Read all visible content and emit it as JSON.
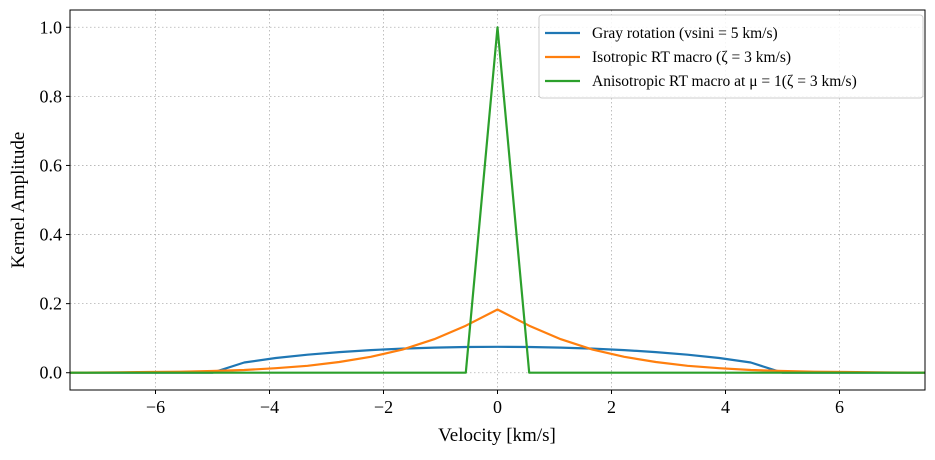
{
  "chart_data": {
    "type": "line",
    "xlabel": "Velocity [km/s]",
    "ylabel": "Kernel Amplitude",
    "xlim": [
      -7.5,
      7.5
    ],
    "ylim": [
      -0.05,
      1.05
    ],
    "xticks": [
      -6,
      -4,
      -2,
      0,
      2,
      4,
      6
    ],
    "xtick_labels": [
      "−6",
      "−4",
      "−2",
      "0",
      "2",
      "4",
      "6"
    ],
    "yticks": [
      0.0,
      0.2,
      0.4,
      0.6,
      0.8,
      1.0
    ],
    "ytick_labels": [
      "0.0",
      "0.2",
      "0.4",
      "0.6",
      "0.8",
      "1.0"
    ],
    "grid": true,
    "legend_position": "top-right",
    "x": [
      -7.778,
      -7.222,
      -6.667,
      -6.111,
      -5.556,
      -5.0,
      -4.444,
      -3.889,
      -3.333,
      -2.778,
      -2.222,
      -1.667,
      -1.111,
      -0.556,
      0,
      0.556,
      1.111,
      1.667,
      2.222,
      2.778,
      3.333,
      3.889,
      4.444,
      5.0,
      5.556,
      6.111,
      6.667,
      7.222,
      7.778
    ],
    "series": [
      {
        "name": "Gray rotation (vsini = 5 km/s)",
        "color": "#1f77b4",
        "values": [
          0,
          0,
          0,
          0,
          0,
          0,
          0.0296,
          0.0427,
          0.0523,
          0.0597,
          0.0654,
          0.0697,
          0.0727,
          0.0744,
          0.075,
          0.0744,
          0.0727,
          0.0697,
          0.0654,
          0.0597,
          0.0523,
          0.0427,
          0.0296,
          0,
          0,
          0,
          0,
          0,
          0
        ]
      },
      {
        "name": "Isotropic RT macro (ζ = 3 km/s)",
        "color": "#ff7f0e",
        "values": [
          0.0003,
          0.0005,
          0.001,
          0.002,
          0.003,
          0.005,
          0.008,
          0.013,
          0.02,
          0.031,
          0.046,
          0.067,
          0.097,
          0.136,
          0.183,
          0.136,
          0.097,
          0.067,
          0.046,
          0.031,
          0.02,
          0.013,
          0.008,
          0.005,
          0.003,
          0.002,
          0.001,
          0.0005,
          0.0003
        ]
      },
      {
        "name": "Anisotropic RT macro at μ = 1(ζ = 3 km/s)",
        "color": "#2ca02c",
        "values": [
          0,
          0,
          0,
          0,
          0,
          0,
          0,
          0,
          0,
          0,
          0,
          0,
          0,
          0,
          1.0,
          0,
          0,
          0,
          0,
          0,
          0,
          0,
          0,
          0,
          0,
          0,
          0,
          0,
          0
        ]
      }
    ]
  }
}
